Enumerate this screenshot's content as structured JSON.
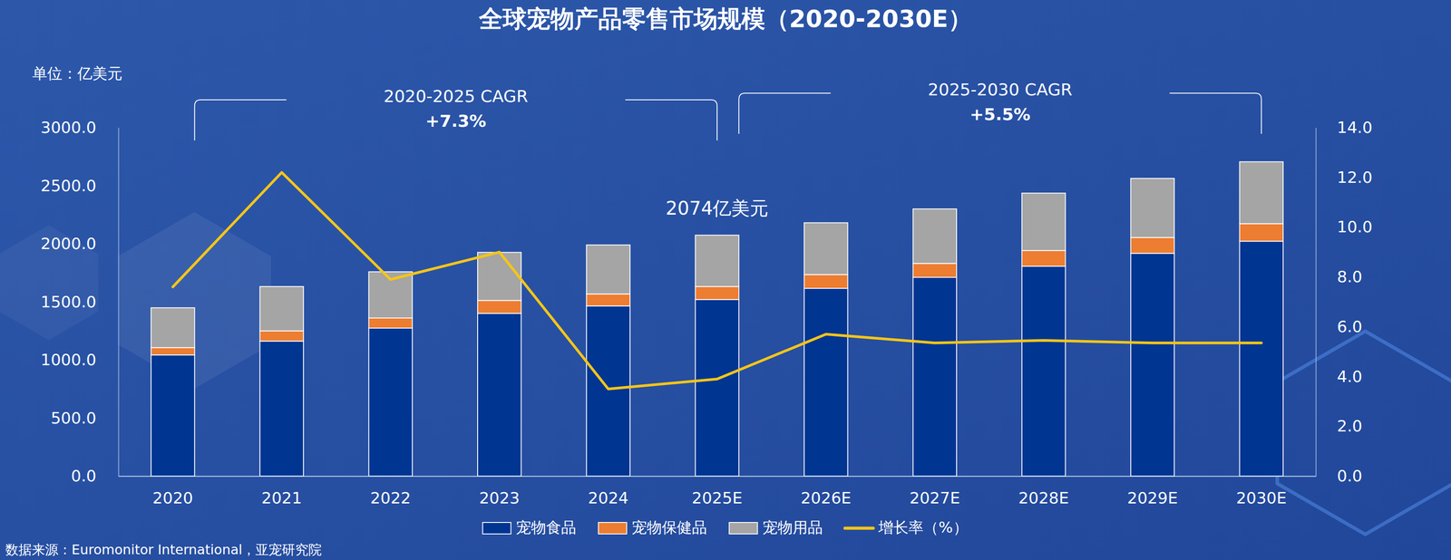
{
  "chart_data": {
    "type": "bar",
    "title": "全球宠物产品零售市场规模（2020-2030E）",
    "unit_label": "单位：亿美元",
    "source": "数据来源：Euromonitor International，亚宠研究院",
    "stacked": true,
    "grid": false,
    "legend": "bottom",
    "data_labels": false,
    "categories": [
      "2020",
      "2021",
      "2022",
      "2023",
      "2024",
      "2025E",
      "2026E",
      "2027E",
      "2028E",
      "2029E",
      "2030E"
    ],
    "series": [
      {
        "name": "宠物食品",
        "type": "bar",
        "color": "#003592",
        "values": [
          1043,
          1162,
          1274,
          1401,
          1465,
          1520,
          1616,
          1711,
          1807,
          1918,
          2022
        ]
      },
      {
        "name": "宠物保健品",
        "type": "bar",
        "color": "#ed7d31",
        "values": [
          63,
          88,
          87,
          111,
          103,
          112,
          119,
          120,
          135,
          136,
          151
        ]
      },
      {
        "name": "宠物用品",
        "type": "bar",
        "color": "#a5a5a5",
        "values": [
          343,
          382,
          398,
          414,
          422,
          442,
          446,
          469,
          494,
          509,
          533
        ]
      },
      {
        "name": "增长率（%）",
        "type": "line",
        "axis": "y2",
        "color": "#f5c518",
        "values": [
          7.6,
          12.2,
          7.9,
          9.0,
          3.5,
          3.9,
          5.7,
          5.35,
          5.45,
          5.35,
          5.35
        ]
      }
    ],
    "ylim": [
      0,
      3000
    ],
    "yticks": [
      {
        "value": 0,
        "label": "0.0"
      },
      {
        "value": 500,
        "label": "500.0"
      },
      {
        "value": 1000,
        "label": "1000.0"
      },
      {
        "value": 1500,
        "label": "1500.0"
      },
      {
        "value": 2000,
        "label": "2000.0"
      },
      {
        "value": 2500,
        "label": "2500.0"
      },
      {
        "value": 3000,
        "label": "3000.0"
      }
    ],
    "y2lim": [
      0,
      14
    ],
    "y2ticks": [
      {
        "value": 0,
        "label": "0.0"
      },
      {
        "value": 2,
        "label": "2.0"
      },
      {
        "value": 4,
        "label": "4.0"
      },
      {
        "value": 6,
        "label": "6.0"
      },
      {
        "value": 8,
        "label": "8.0"
      },
      {
        "value": 10,
        "label": "10.0"
      },
      {
        "value": 12,
        "label": "12.0"
      },
      {
        "value": 14,
        "label": "14.0"
      }
    ],
    "brackets": [
      {
        "label": "2020-2025 CAGR",
        "text": "+7.3%",
        "start": "2020",
        "end": "2025E"
      },
      {
        "label": "2025-2030 CAGR",
        "text": "+5.5%",
        "start": "2025E",
        "end": "2030E"
      }
    ],
    "annotations": [
      {
        "text": "2074亿美元",
        "category": "2025E"
      }
    ]
  }
}
